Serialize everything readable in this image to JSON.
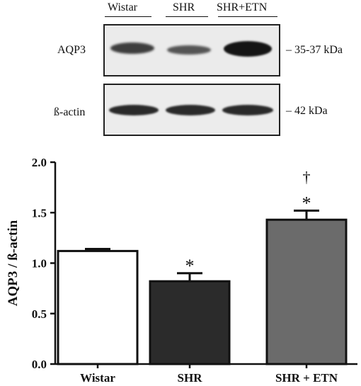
{
  "blot": {
    "lanes": [
      "Wistar",
      "SHR",
      "SHR+ETN"
    ],
    "rows": [
      {
        "protein": "AQP3",
        "size": "35-37 kDa"
      },
      {
        "protein": "ß-actin",
        "size": "42 kDa"
      }
    ],
    "band_dash": "–"
  },
  "chart_data": {
    "type": "bar",
    "categories": [
      "Wistar",
      "SHR",
      "SHR + ETN"
    ],
    "values": [
      1.12,
      0.82,
      1.43
    ],
    "errors": [
      0.02,
      0.08,
      0.09
    ],
    "annotations": [
      [],
      [
        "*"
      ],
      [
        "*",
        "†"
      ]
    ],
    "ylabel": "AQP3 / ß-actin",
    "xlabel": "",
    "ylim": [
      0,
      2.0
    ],
    "yticks": [
      "0.0",
      "0.5",
      "1.0",
      "1.5",
      "2.0"
    ],
    "bar_colors": [
      "#ffffff",
      "#2b2b2b",
      "#6b6b6b"
    ],
    "grid": false
  }
}
